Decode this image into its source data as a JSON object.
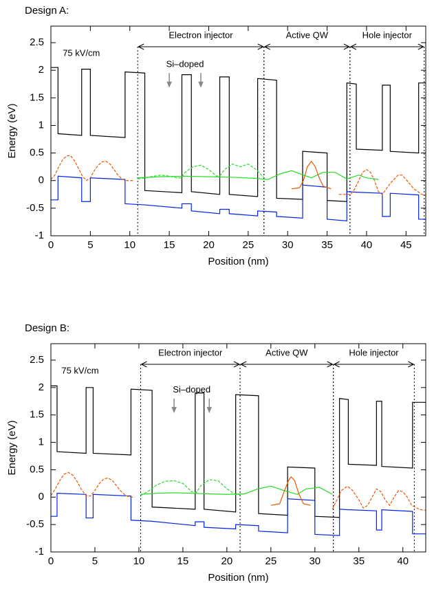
{
  "chart_data": [
    {
      "type": "line",
      "title": "Design A:",
      "xlabel": "Position (nm)",
      "ylabel": "Energy (eV)",
      "xlim": [
        0,
        47.5
      ],
      "ylim": [
        -1,
        2.8
      ],
      "xticks": [
        0,
        5,
        10,
        15,
        20,
        25,
        30,
        35,
        40,
        45
      ],
      "yticks": [
        -1,
        -0.5,
        0,
        0.5,
        1,
        1.5,
        2,
        2.5
      ],
      "regions": [
        {
          "label": "Electron injector",
          "x": [
            11,
            27
          ]
        },
        {
          "label": "Active QW",
          "x": [
            27,
            37.9
          ]
        },
        {
          "label": "Hole injector",
          "x": [
            37.9,
            47.3
          ]
        }
      ],
      "annotations": [
        {
          "text": "75 kV/cm",
          "x": 1.5,
          "y": 2.3
        },
        {
          "text": "Si–doped",
          "x": 17,
          "y": 2.1
        }
      ],
      "doping_arrows": {
        "x": [
          15,
          19
        ],
        "y": [
          1.95,
          1.7
        ]
      },
      "series": [
        {
          "color": "#000000",
          "dash": false,
          "x": [
            0,
            0.9,
            0.9,
            3.9,
            3.9,
            5,
            5,
            9.4,
            9.4,
            11.9,
            11.9,
            16.6,
            16.6,
            17.8,
            17.8,
            21.4,
            21.4,
            22.6,
            22.6,
            26.2,
            26.2,
            28.6,
            28.6,
            31.9,
            31.9,
            35,
            35,
            37.5,
            37.5,
            38.7,
            38.7,
            42,
            42,
            43,
            43,
            46.6,
            46.6,
            47.5
          ],
          "values": [
            2.05,
            2.05,
            0.85,
            0.82,
            2.02,
            2.02,
            0.82,
            0.78,
            1.97,
            1.95,
            -0.18,
            -0.22,
            1.92,
            1.92,
            -0.2,
            -0.25,
            1.88,
            1.88,
            -0.25,
            -0.29,
            1.85,
            1.82,
            -0.32,
            -0.34,
            0.53,
            0.5,
            -0.36,
            -0.38,
            1.77,
            1.75,
            0.57,
            0.55,
            1.73,
            1.73,
            0.53,
            0.5,
            1.77,
            1.77
          ]
        },
        {
          "color": "#0022ee",
          "dash": false,
          "x": [
            0,
            0.9,
            0.9,
            3.9,
            3.9,
            5,
            5,
            9.4,
            9.4,
            11.9,
            11.9,
            16.6,
            16.6,
            17.8,
            17.8,
            21.4,
            21.4,
            22.6,
            22.6,
            26.2,
            26.2,
            28.6,
            28.6,
            31.9,
            31.9,
            35,
            35,
            37.5,
            37.5,
            38.7,
            38.7,
            42,
            42,
            43,
            43,
            46.6,
            46.6,
            47.5
          ],
          "values": [
            -0.35,
            -0.35,
            0.08,
            0.05,
            -0.38,
            -0.38,
            0.05,
            0.02,
            -0.42,
            -0.44,
            -0.44,
            -0.5,
            -0.42,
            -0.42,
            -0.55,
            -0.6,
            -0.52,
            -0.52,
            -0.6,
            -0.64,
            -0.55,
            -0.57,
            -0.65,
            -0.68,
            -0.08,
            -0.12,
            -0.7,
            -0.73,
            -0.2,
            -0.21,
            -0.21,
            -0.23,
            -0.65,
            -0.65,
            -0.23,
            -0.26,
            -0.7,
            -0.7
          ]
        },
        {
          "color": "#ee5500",
          "dash": true,
          "x": [
            0,
            0.5,
            1,
            1.5,
            2,
            2.5,
            3,
            3.5,
            4,
            4.5,
            5,
            5.5,
            6,
            6.5,
            7,
            7.5,
            8,
            8.5,
            9,
            9.5,
            10.5
          ],
          "values": [
            0.02,
            0.1,
            0.25,
            0.38,
            0.45,
            0.45,
            0.36,
            0.22,
            0.08,
            0.0,
            0.05,
            0.18,
            0.28,
            0.34,
            0.35,
            0.3,
            0.2,
            0.1,
            0.03,
            0.0,
            0.0
          ]
        },
        {
          "color": "#22dd22",
          "dash": true,
          "x": [
            11,
            12,
            13,
            14,
            15,
            16,
            16.5,
            17,
            18,
            19,
            20,
            21,
            21.5,
            22,
            23,
            24,
            25,
            26,
            27
          ],
          "values": [
            0.03,
            0.05,
            0.08,
            0.1,
            0.08,
            0.05,
            0.05,
            0.15,
            0.25,
            0.28,
            0.2,
            0.08,
            0.1,
            0.2,
            0.3,
            0.25,
            0.3,
            0.2,
            0.05
          ]
        },
        {
          "color": "#22dd22",
          "dash": false,
          "x": [
            11,
            14,
            17,
            20,
            23,
            26,
            27.5,
            29,
            30.5,
            32,
            33,
            34.5,
            36,
            37.5,
            39,
            40,
            41.5
          ],
          "values": [
            0.05,
            0.07,
            0.08,
            0.07,
            0.06,
            0.04,
            0.02,
            0.12,
            0.18,
            0.1,
            0.05,
            0.15,
            0.15,
            0.03,
            0.1,
            0.05,
            0.02
          ]
        },
        {
          "color": "#ee5500",
          "dash": false,
          "x": [
            30.5,
            31.5,
            32,
            32.5,
            33,
            33.5,
            34,
            34.5,
            35.5
          ],
          "values": [
            -0.15,
            -0.13,
            0.0,
            0.25,
            0.35,
            0.25,
            0.05,
            -0.1,
            -0.15
          ]
        },
        {
          "color": "#ee5500",
          "dash": true,
          "x": [
            36.5,
            38,
            38.5,
            39,
            39.5,
            40,
            40.5,
            41,
            41.5,
            42,
            42.5,
            43,
            44,
            44.5,
            45,
            46,
            47,
            47.5
          ],
          "values": [
            -0.25,
            -0.25,
            -0.15,
            0.0,
            0.15,
            0.2,
            0.15,
            0.0,
            -0.2,
            -0.25,
            -0.15,
            -0.05,
            0.1,
            0.1,
            0.02,
            -0.15,
            -0.25,
            -0.27
          ]
        }
      ]
    },
    {
      "type": "line",
      "title": "Design B:",
      "xlabel": "Position (nm)",
      "ylabel": "Energy (eV)",
      "xlim": [
        0,
        42.6
      ],
      "ylim": [
        -1,
        2.8
      ],
      "xticks": [
        0,
        5,
        10,
        15,
        20,
        25,
        30,
        35,
        40
      ],
      "yticks": [
        -1,
        -0.5,
        0,
        0.5,
        1,
        1.5,
        2,
        2.5
      ],
      "regions": [
        {
          "label": "Electron injector",
          "x": [
            10.2,
            21.5
          ]
        },
        {
          "label": "Active QW",
          "x": [
            21.5,
            32.1
          ]
        },
        {
          "label": "Hole injector",
          "x": [
            32.1,
            41.3
          ]
        }
      ],
      "annotations": [
        {
          "text": "75 kV/cm",
          "x": 1.2,
          "y": 2.3
        },
        {
          "text": "Si–doped",
          "x": 16,
          "y": 1.95
        }
      ],
      "doping_arrows": {
        "x": [
          14,
          18
        ],
        "y": [
          1.8,
          1.55
        ]
      },
      "series": [
        {
          "color": "#000000",
          "dash": false,
          "x": [
            0,
            0.7,
            0.7,
            4,
            4,
            4.8,
            4.8,
            9.1,
            9.1,
            11.5,
            11.5,
            16.4,
            16.4,
            17.4,
            17.4,
            21,
            21,
            23.6,
            23.6,
            26.9,
            26.9,
            30,
            30,
            32.8,
            32.8,
            33.8,
            33.8,
            37,
            37,
            37.6,
            37.6,
            41.1,
            41.1,
            42.6
          ],
          "values": [
            2.03,
            2.03,
            0.83,
            0.8,
            2.0,
            2.0,
            0.8,
            0.77,
            1.97,
            1.95,
            -0.18,
            -0.22,
            1.9,
            1.9,
            -0.22,
            -0.27,
            1.87,
            1.85,
            -0.3,
            -0.33,
            0.55,
            0.53,
            -0.35,
            -0.37,
            1.8,
            1.78,
            0.6,
            0.58,
            1.75,
            1.75,
            0.56,
            0.53,
            1.73,
            1.73
          ]
        },
        {
          "color": "#0022ee",
          "dash": false,
          "x": [
            0,
            0.7,
            0.7,
            4,
            4,
            4.8,
            4.8,
            9.1,
            9.1,
            11.5,
            11.5,
            16.4,
            16.4,
            17.4,
            17.4,
            21,
            21,
            23.6,
            23.6,
            26.9,
            26.9,
            30,
            30,
            32.8,
            32.8,
            33.8,
            33.8,
            37,
            37,
            37.6,
            37.6,
            41.1,
            41.1,
            42.6
          ],
          "values": [
            -0.35,
            -0.35,
            0.07,
            0.05,
            -0.38,
            -0.38,
            0.05,
            0.02,
            -0.42,
            -0.44,
            -0.44,
            -0.52,
            -0.45,
            -0.45,
            -0.55,
            -0.58,
            -0.5,
            -0.52,
            -0.62,
            -0.65,
            -0.03,
            -0.06,
            -0.68,
            -0.7,
            -0.22,
            -0.23,
            -0.23,
            -0.25,
            -0.6,
            -0.6,
            -0.23,
            -0.26,
            -0.67,
            -0.67
          ]
        },
        {
          "color": "#ee5500",
          "dash": true,
          "x": [
            0,
            0.5,
            1,
            1.5,
            2,
            2.5,
            3,
            3.5,
            4,
            4.5,
            5,
            5.5,
            6,
            6.5,
            7,
            7.5,
            8,
            8.5,
            9,
            9.5
          ],
          "values": [
            0.03,
            0.15,
            0.3,
            0.42,
            0.45,
            0.4,
            0.28,
            0.13,
            0.03,
            0.02,
            0.12,
            0.25,
            0.33,
            0.35,
            0.3,
            0.2,
            0.1,
            0.03,
            0.0,
            0.0
          ]
        },
        {
          "color": "#22dd22",
          "dash": true,
          "x": [
            10.2,
            11,
            12,
            13,
            14,
            15,
            16,
            16.5,
            17,
            18,
            19,
            20,
            21,
            21.5
          ],
          "values": [
            0.03,
            0.1,
            0.22,
            0.29,
            0.3,
            0.25,
            0.1,
            0.08,
            0.2,
            0.32,
            0.3,
            0.15,
            0.05,
            0.05
          ]
        },
        {
          "color": "#22dd22",
          "dash": false,
          "x": [
            10.2,
            12,
            14,
            16,
            18,
            20,
            22,
            23.5,
            25,
            26.5,
            28,
            29,
            30.5,
            32
          ],
          "values": [
            0.05,
            0.07,
            0.08,
            0.07,
            0.06,
            0.05,
            0.06,
            0.15,
            0.2,
            0.12,
            0.05,
            0.15,
            0.18,
            0.05
          ]
        },
        {
          "color": "#ee5500",
          "dash": false,
          "x": [
            25,
            26,
            26.5,
            27,
            27.3,
            27.7,
            28.2,
            28.7,
            29.5
          ],
          "values": [
            -0.15,
            -0.12,
            0.1,
            0.3,
            0.37,
            0.3,
            0.05,
            -0.12,
            -0.15
          ]
        },
        {
          "color": "#ee5500",
          "dash": true,
          "x": [
            32,
            32.5,
            33,
            33.7,
            34.3,
            35,
            35.5,
            36,
            36.5,
            37,
            37.5,
            38,
            38.5,
            39,
            39.5,
            40,
            40.5,
            41,
            42,
            42.6
          ],
          "values": [
            -0.22,
            -0.05,
            0.12,
            0.2,
            0.12,
            -0.05,
            -0.2,
            -0.15,
            0.0,
            0.15,
            0.1,
            -0.05,
            -0.15,
            0.0,
            0.12,
            0.1,
            0.0,
            -0.15,
            -0.23,
            -0.24
          ]
        }
      ]
    }
  ]
}
